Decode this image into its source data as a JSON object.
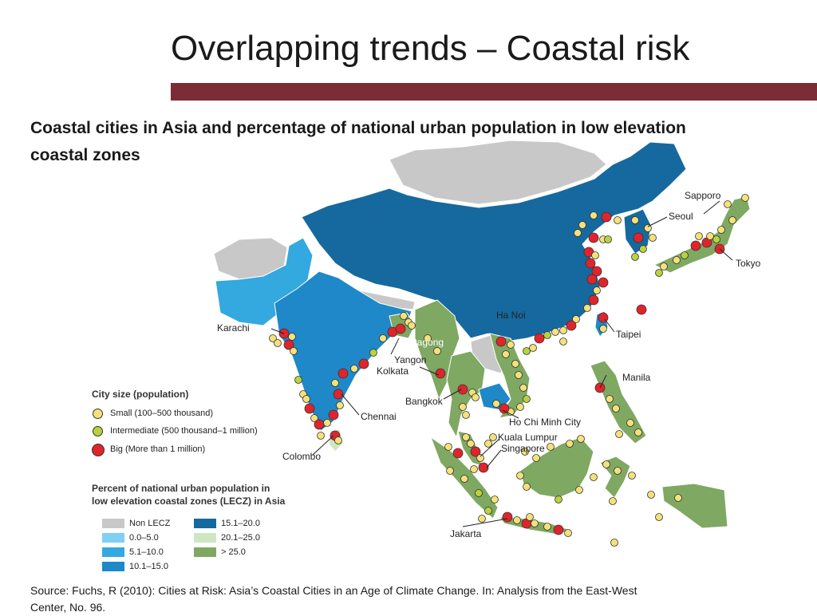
{
  "slide": {
    "title": "Overlapping trends – Coastal risk",
    "subtitle": "Coastal cities in Asia and percentage of national urban population in low elevation coastal zones",
    "source": "Source: Fuchs, R (2010): Cities at Risk: Asia’s Coastal Cities in an Age of Climate Change. In: Analysis from the East-West Center, No. 96."
  },
  "colors": {
    "accent_bar": "#7b2c36",
    "non_lecz": "#c8c8c8",
    "lecz_0_5": "#7fd0f3",
    "lecz_5_10": "#33a9e0",
    "lecz_10_15": "#1e88c8",
    "lecz_15_20": "#16699e",
    "lecz_20_25": "#cfe6c3",
    "lecz_gt25": "#7fa863",
    "small_city": "#f4e17a",
    "intermediate_city": "#b9d23d",
    "big_city": "#e0242c"
  },
  "legend": {
    "city_size_title": "City size (population)",
    "city_sizes": [
      {
        "label": "Small (100–500 thousand)",
        "color": "#f4e17a"
      },
      {
        "label": "Intermediate (500 thousand–1 million)",
        "color": "#b9d23d"
      },
      {
        "label": "Big (More than 1 million)",
        "color": "#e0242c"
      }
    ],
    "lecz_title_line1": "Percent of national urban population in",
    "lecz_title_line2": "low elevation coastal zones (LECZ) in Asia",
    "lecz_classes": [
      {
        "label": "Non LECZ",
        "color": "#c8c8c8"
      },
      {
        "label": "0.0–5.0",
        "color": "#7fd0f3"
      },
      {
        "label": "5.1–10.0",
        "color": "#33a9e0"
      },
      {
        "label": "10.1–15.0",
        "color": "#1e88c8"
      },
      {
        "label": "15.1–20.0",
        "color": "#16699e"
      },
      {
        "label": "20.1–25.0",
        "color": "#cfe6c3"
      },
      {
        "label": "> 25.0",
        "color": "#7fa863"
      }
    ]
  },
  "cities": {
    "sapporo": "Sapporo",
    "seoul": "Seoul",
    "tokyo": "Tokyo",
    "karachi": "Karachi",
    "ha_noi": "Ha Noi",
    "chittagong": "Chittagong",
    "taipei": "Taipei",
    "yangon": "Yangon",
    "kolkata": "Kolkata",
    "manila": "Manila",
    "bangkok": "Bangkok",
    "chennai": "Chennai",
    "ho_chi_minh": "Ho Chi Minh City",
    "kuala_lumpur": "Kuala Lumpur",
    "singapore": "Singapore",
    "colombo": "Colombo",
    "jakarta": "Jakarta"
  }
}
